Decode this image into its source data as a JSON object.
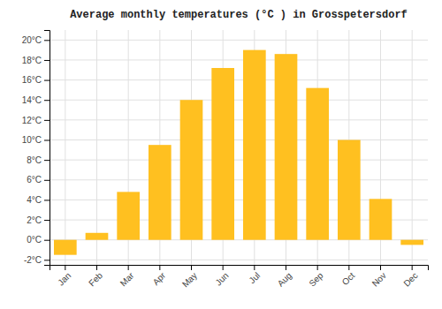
{
  "chart_data": {
    "type": "bar",
    "title": "Average monthly temperatures (°C ) in Grosspetersdorf",
    "categories": [
      "Jan",
      "Feb",
      "Mar",
      "Apr",
      "May",
      "Jun",
      "Jul",
      "Aug",
      "Sep",
      "Oct",
      "Nov",
      "Dec"
    ],
    "values": [
      -1.5,
      0.7,
      4.8,
      9.5,
      14.0,
      17.2,
      19.0,
      18.6,
      15.2,
      10.0,
      4.1,
      -0.5
    ],
    "color": "#FFC020",
    "ylim": [
      -2.5,
      21
    ],
    "yticks": [
      {
        "value": -2,
        "label": "-2°C"
      },
      {
        "value": 0,
        "label": "0°C"
      },
      {
        "value": 2,
        "label": "2°C"
      },
      {
        "value": 4,
        "label": "4°C"
      },
      {
        "value": 6,
        "label": "6°C"
      },
      {
        "value": 8,
        "label": "8°C"
      },
      {
        "value": 10,
        "label": "10°C"
      },
      {
        "value": 12,
        "label": "12°C"
      },
      {
        "value": 14,
        "label": "14°C"
      },
      {
        "value": 16,
        "label": "16°C"
      },
      {
        "value": 18,
        "label": "18°C"
      },
      {
        "value": 20,
        "label": "20°C"
      }
    ],
    "grid": true
  }
}
